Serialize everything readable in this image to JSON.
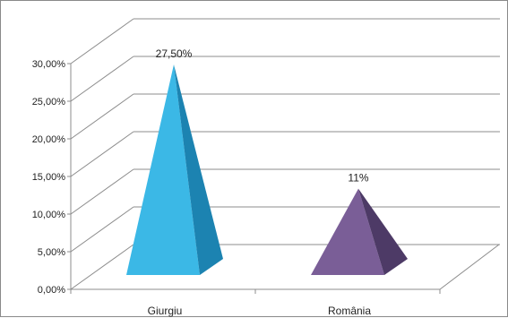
{
  "chart_data": {
    "type": "bar",
    "subtype": "3d-pyramid",
    "title": "",
    "xlabel": "",
    "ylabel": "",
    "categories": [
      "Giurgiu",
      "România"
    ],
    "values": [
      27.5,
      11
    ],
    "data_labels": [
      "27,50%",
      "11%"
    ],
    "ylim": [
      0,
      30
    ],
    "y_ticks": [
      0,
      5,
      10,
      15,
      20,
      25,
      30
    ],
    "y_tick_labels": [
      "0,00%",
      "5,00%",
      "10,00%",
      "15,00%",
      "20,00%",
      "25,00%",
      "30,00%"
    ],
    "grid": true,
    "legend": "none",
    "colors": {
      "Giurgiu": {
        "front": "#3bb8e6",
        "side": "#1c83b1"
      },
      "România": {
        "front": "#7a5e97",
        "side": "#4d3a66"
      }
    }
  }
}
